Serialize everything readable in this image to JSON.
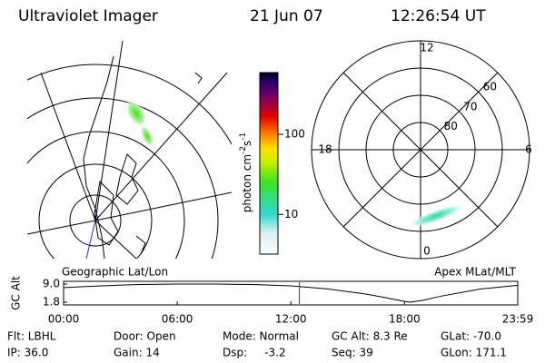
{
  "header": {
    "title": "Ultraviolet Imager",
    "date": "21 Jun 07",
    "time": "12:26:54 UT"
  },
  "colorbar": {
    "label": [
      "photon cm",
      "-2",
      "s",
      "-1"
    ],
    "log": true,
    "ylim": [
      3.2,
      590
    ],
    "yticks": [
      10,
      100
    ]
  },
  "polar": {
    "rlim": [
      90,
      50
    ],
    "rticks": [
      60,
      70,
      80
    ],
    "mlt": [
      "12",
      "6",
      "0",
      "18"
    ]
  },
  "chart_data": {
    "type": "line",
    "ylabel": "GC Alt",
    "left_title": "Geographic Lat/Lon",
    "right_title": "Apex MLat/MLT",
    "x": [
      0,
      2,
      4,
      6,
      8,
      10,
      12,
      14,
      16,
      17,
      18,
      18.3,
      19,
      20,
      22,
      23.98
    ],
    "series": [
      {
        "color": "#000000",
        "values": [
          7.6,
          8.3,
          8.8,
          9.0,
          9.0,
          8.8,
          8.3,
          7.0,
          5.0,
          3.6,
          2.1,
          1.8,
          2.6,
          4.3,
          7.0,
          8.5
        ]
      }
    ],
    "marker_x": 12.45,
    "marker_color": "#e00000",
    "xlim": [
      0,
      23.98
    ],
    "xticks": [
      {
        "value": 0,
        "label": "00:00"
      },
      {
        "value": 6,
        "label": "06:00"
      },
      {
        "value": 12,
        "label": "12:00"
      },
      {
        "value": 18,
        "label": "18:00"
      },
      {
        "value": 23.98,
        "label": "23:59"
      }
    ],
    "ylim": [
      1.8,
      9.0
    ],
    "yticks": [
      {
        "value": 9.0,
        "label": "9.0"
      },
      {
        "value": 1.8,
        "label": "1.8"
      }
    ]
  },
  "footer": [
    [
      "Flt: LBHL",
      "IP: 36.0"
    ],
    [
      "Door: Open",
      "Gain: 14"
    ],
    [
      "Mode: Normal",
      "Dsp:     -3.2"
    ],
    [
      "GC Alt: 8.3 Re",
      "Seq: 39"
    ],
    [
      "GLat: -70.0",
      "GLon: 171.1"
    ]
  ]
}
